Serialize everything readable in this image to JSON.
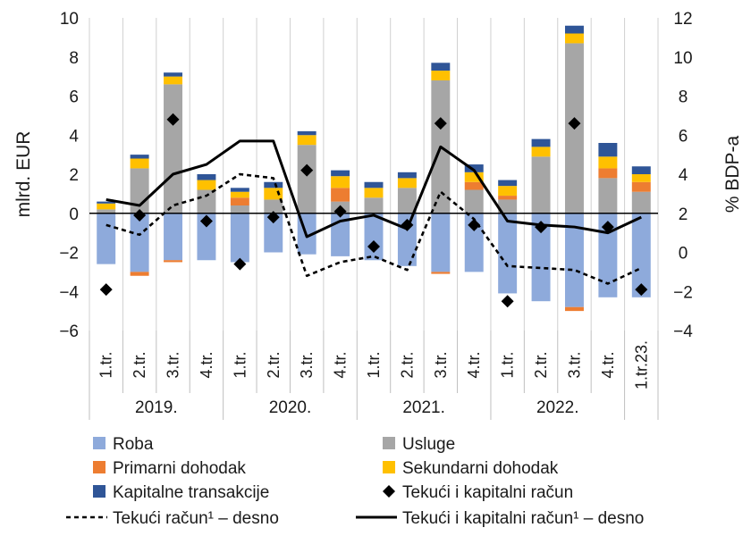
{
  "chart_data": {
    "type": "bar",
    "ylabel_left": "mlrd. EUR",
    "ylabel_right": "% BDP-a",
    "ylim_left": [
      -6,
      10
    ],
    "ylim_right": [
      -4,
      12
    ],
    "yticks_left": [
      "10",
      "8",
      "6",
      "4",
      "2",
      "0",
      "−2",
      "−4",
      "−6"
    ],
    "yticks_right": [
      "12",
      "10",
      "8",
      "6",
      "4",
      "2",
      "0",
      "−2",
      "−4"
    ],
    "categories": [
      "1.tr.",
      "2.tr.",
      "3.tr.",
      "4.tr.",
      "1.tr.",
      "2.tr.",
      "3.tr.",
      "4.tr.",
      "1.tr.",
      "2.tr.",
      "3.tr.",
      "4.tr.",
      "1.tr.",
      "2.tr.",
      "3.tr.",
      "4.tr.",
      "1.tr.23."
    ],
    "year_groups": [
      {
        "label": "2019.",
        "start": 0,
        "end": 3
      },
      {
        "label": "2020.",
        "start": 4,
        "end": 7
      },
      {
        "label": "2021.",
        "start": 8,
        "end": 11
      },
      {
        "label": "2022.",
        "start": 12,
        "end": 15
      }
    ],
    "series": [
      {
        "name": "Roba",
        "color": "#8EAADB",
        "kind": "stacked-bar",
        "values": [
          -2.6,
          -3.0,
          -2.4,
          -2.4,
          -2.5,
          -2.0,
          -2.1,
          -2.2,
          -2.4,
          -2.7,
          -3.0,
          -3.0,
          -4.1,
          -4.5,
          -4.8,
          -4.3,
          -4.3
        ]
      },
      {
        "name": "Usluge",
        "color": "#A6A6A6",
        "kind": "stacked-bar",
        "values": [
          0.2,
          2.3,
          6.6,
          1.2,
          0.4,
          0.7,
          3.5,
          0.6,
          0.8,
          1.3,
          6.8,
          1.2,
          0.7,
          2.9,
          8.7,
          1.8,
          1.1
        ]
      },
      {
        "name": "Primarni dohodak",
        "color": "#ED7D31",
        "kind": "stacked-bar",
        "values": [
          0.0,
          -0.2,
          -0.1,
          0.0,
          0.4,
          0.0,
          0.0,
          0.7,
          0.0,
          0.0,
          -0.1,
          0.4,
          0.2,
          0.0,
          -0.2,
          0.5,
          0.5
        ]
      },
      {
        "name": "Sekundarni dohodak",
        "color": "#FFC000",
        "kind": "stacked-bar",
        "values": [
          0.3,
          0.5,
          0.4,
          0.5,
          0.3,
          0.6,
          0.5,
          0.6,
          0.5,
          0.5,
          0.5,
          0.5,
          0.5,
          0.5,
          0.5,
          0.6,
          0.4
        ]
      },
      {
        "name": "Kapitalne transakcije",
        "color": "#2F5597",
        "kind": "stacked-bar",
        "values": [
          0.1,
          0.2,
          0.2,
          0.3,
          0.2,
          0.3,
          0.2,
          0.3,
          0.3,
          0.3,
          0.4,
          0.4,
          0.3,
          0.4,
          0.4,
          0.7,
          0.4
        ]
      },
      {
        "name": "Tekući i kapitalni račun",
        "color": "#000000",
        "kind": "diamond",
        "values": [
          -3.9,
          -0.1,
          4.8,
          -0.4,
          -2.6,
          -0.2,
          2.2,
          0.1,
          -1.7,
          -0.6,
          4.6,
          -0.6,
          -4.5,
          -0.7,
          4.6,
          -0.7,
          -3.9
        ]
      },
      {
        "name": "Tekući račun¹ – desno",
        "color": "#000000",
        "kind": "dashed-line",
        "axis": "right",
        "values": [
          1.4,
          0.9,
          2.4,
          2.9,
          4.0,
          3.8,
          -1.2,
          -0.5,
          -0.2,
          -0.9,
          3.1,
          1.7,
          -0.7,
          -0.8,
          -0.9,
          -1.6,
          -0.8
        ]
      },
      {
        "name": "Tekući i kapitalni račun¹ – desno",
        "color": "#000000",
        "kind": "solid-line",
        "axis": "right",
        "values": [
          2.7,
          2.4,
          4.0,
          4.5,
          5.7,
          5.7,
          0.8,
          1.6,
          1.9,
          1.2,
          5.4,
          4.2,
          1.6,
          1.4,
          1.3,
          1.0,
          1.8
        ]
      }
    ],
    "legend": [
      [
        "Roba",
        "Usluge"
      ],
      [
        "Primarni dohodak",
        "Sekundarni dohodak"
      ],
      [
        "Kapitalne transakcije",
        "Tekući i kapitalni račun"
      ],
      [
        "Tekući račun¹ – desno",
        "Tekući i kapitalni račun¹ – desno"
      ]
    ],
    "legend_position": "bottom"
  }
}
